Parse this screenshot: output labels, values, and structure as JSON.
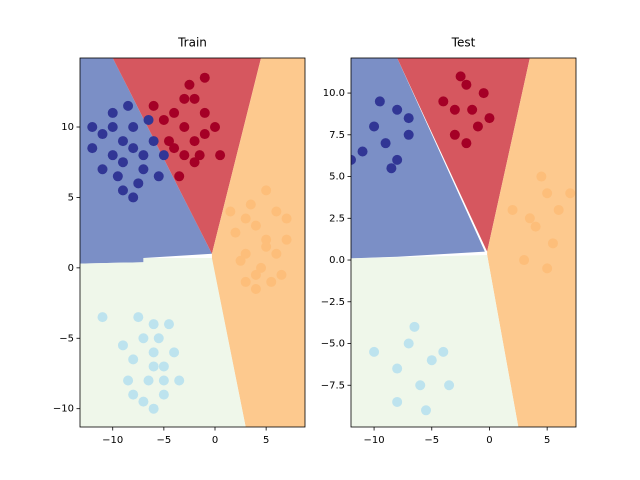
{
  "chart_data": [
    {
      "type": "scatter",
      "title": "Train",
      "xlim": [
        -13.2,
        8.8
      ],
      "ylim": [
        -11.3,
        14.9
      ],
      "xticks": [
        {
          "value": -10,
          "label": "−10"
        },
        {
          "value": -5,
          "label": "−5"
        },
        0,
        5
      ],
      "yticks": [
        {
          "value": -10,
          "label": "−10"
        },
        {
          "value": -5,
          "label": "−5"
        },
        0,
        5,
        10
      ],
      "regions": [
        {
          "color": "#7b8fc6",
          "x": [
            -13.2,
            -10,
            -0.3,
            -7,
            -7,
            -13.2
          ],
          "y": [
            14.9,
            14.9,
            1.0,
            0.7,
            0.4,
            0.3
          ]
        },
        {
          "color": "#d6575f",
          "x": [
            -10,
            4.5,
            -0.3
          ],
          "y": [
            14.9,
            14.9,
            1.0
          ]
        },
        {
          "color": "#fdc98e",
          "x": [
            4.5,
            8.8,
            8.8,
            3,
            -0.3,
            -0.3
          ],
          "y": [
            14.9,
            14.9,
            -11.3,
            -11.3,
            0.6,
            1.0
          ]
        },
        {
          "color": "#eff7ea",
          "x": [
            -13.2,
            -7,
            -7,
            -0.3,
            3,
            -13.2
          ],
          "y": [
            0.3,
            0.4,
            0.7,
            0.7,
            -11.3,
            -11.3
          ]
        }
      ],
      "series": [
        {
          "color": "#313695",
          "x": [
            -9,
            -10,
            -8,
            -7,
            -11,
            -9.5,
            -8,
            -6,
            -10,
            -12,
            -7.5,
            -9,
            -5,
            -11,
            -8.5,
            -6.5,
            -10,
            -7,
            -12,
            -8,
            -5.5,
            -9
          ],
          "y": [
            9,
            8,
            10,
            7,
            9.5,
            6.5,
            8.5,
            9,
            11,
            8.5,
            6,
            5.5,
            8,
            7,
            11.5,
            10.5,
            10,
            8,
            10,
            5,
            6.5,
            7.5
          ]
        },
        {
          "color": "#a50026",
          "x": [
            -3,
            -2,
            -4,
            -1,
            -3,
            -5,
            -2,
            -1,
            -4,
            -3,
            -2.5,
            0,
            -1.5,
            -4.5,
            -3.5,
            0.5,
            -2,
            -6,
            -1
          ],
          "y": [
            10,
            9,
            8.5,
            11,
            12,
            10.5,
            7.5,
            9.5,
            11,
            8,
            13,
            10,
            8,
            9,
            6.5,
            8,
            12,
            11.5,
            13.5
          ]
        },
        {
          "color": "#fdbe7a",
          "x": [
            4,
            5,
            3,
            6,
            4.5,
            2,
            5.5,
            3.5,
            7,
            4,
            6,
            3,
            5,
            2.5,
            7,
            4,
            5,
            6.5,
            1.5,
            3
          ],
          "y": [
            3,
            2,
            1,
            4,
            0,
            2.5,
            -1,
            4.5,
            2,
            -0.5,
            1,
            3.5,
            5.5,
            0.5,
            3.5,
            -1.5,
            1.5,
            -0.5,
            4,
            -1
          ]
        },
        {
          "color": "#bde3ee",
          "x": [
            -6,
            -7,
            -5,
            -6.5,
            -8,
            -4,
            -6,
            -7,
            -5,
            -8.5,
            -6,
            -3.5,
            -7.5,
            -5.5,
            -9,
            -4.5,
            -6,
            -11,
            -8,
            -5
          ],
          "y": [
            -6,
            -5,
            -7,
            -8,
            -6.5,
            -6,
            -4,
            -9.5,
            -9,
            -8,
            -7,
            -8,
            -3.5,
            -5,
            -5.5,
            -4,
            -10,
            -3.5,
            -9,
            -8
          ]
        }
      ]
    },
    {
      "type": "scatter",
      "title": "Test",
      "xlim": [
        -12.0,
        7.5
      ],
      "ylim": [
        -10.0,
        12.1
      ],
      "xticks": [
        {
          "value": -10,
          "label": "−10"
        },
        {
          "value": -5,
          "label": "−5"
        },
        0,
        5
      ],
      "yticks": [
        {
          "value": -7.5,
          "label": "−7.5"
        },
        {
          "value": -5,
          "label": "−5.0"
        },
        {
          "value": -2.5,
          "label": "−2.5"
        },
        {
          "value": 0,
          "label": "0.0"
        },
        2.5,
        {
          "value": 5,
          "label": "5.0"
        },
        7.5,
        {
          "value": 10,
          "label": "10.0"
        }
      ],
      "regions": [
        {
          "color": "#7b8fc6",
          "x": [
            -12,
            -8,
            -0.4,
            -8,
            -12
          ],
          "y": [
            12.1,
            12.1,
            0.5,
            0.2,
            0.1
          ]
        },
        {
          "color": "#d6575f",
          "x": [
            -8,
            3.5,
            -0.2
          ],
          "y": [
            12.1,
            12.1,
            0.5
          ]
        },
        {
          "color": "#fdc98e",
          "x": [
            3.5,
            7.5,
            7.5,
            2.5,
            -0.2,
            -0.2
          ],
          "y": [
            12.1,
            12.1,
            -10,
            -10,
            0.3,
            0.5
          ]
        },
        {
          "color": "#eff7ea",
          "x": [
            -12,
            -0.2,
            2.5,
            -12
          ],
          "y": [
            0.1,
            0.3,
            -10,
            -10
          ]
        }
      ],
      "series": [
        {
          "color": "#313695",
          "x": [
            -10,
            -9,
            -8,
            -7,
            -11,
            -8.5,
            -9.5,
            -12,
            -7,
            -8
          ],
          "y": [
            8,
            7,
            9,
            7.5,
            6.5,
            5.5,
            9.5,
            6,
            8.5,
            6
          ]
        },
        {
          "color": "#a50026",
          "x": [
            -2,
            -3,
            -1,
            -2.5,
            -4,
            -0.5,
            -3,
            0,
            -1.5,
            -2
          ],
          "y": [
            10.5,
            9,
            8,
            11,
            9.5,
            10,
            7.5,
            8.5,
            9,
            7
          ]
        },
        {
          "color": "#fdbe7a",
          "x": [
            5,
            4,
            6,
            5.5,
            3,
            4.5,
            7,
            2,
            5,
            3.5
          ],
          "y": [
            4,
            2,
            3,
            1,
            0,
            5,
            4,
            3,
            -0.5,
            2.5
          ]
        },
        {
          "color": "#bde3ee",
          "x": [
            -7,
            -5,
            -6,
            -8,
            -4,
            -6.5,
            -8,
            -5.5,
            -3.5,
            -10
          ],
          "y": [
            -5,
            -6,
            -7.5,
            -6.5,
            -5.5,
            -4,
            -8.5,
            -9,
            -7.5,
            -5.5
          ]
        }
      ]
    }
  ]
}
